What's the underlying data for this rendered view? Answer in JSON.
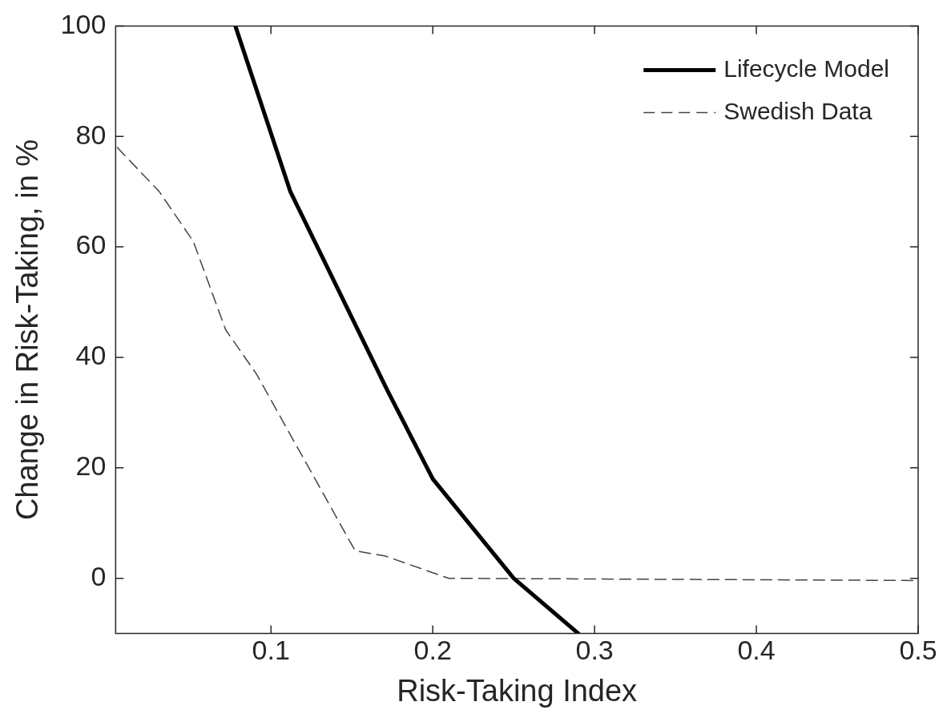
{
  "chart_data": {
    "type": "line",
    "xlabel": "Risk-Taking Index",
    "ylabel": "Change in Risk-Taking, in %",
    "xlim": [
      0.004,
      0.5
    ],
    "ylim": [
      -10,
      100
    ],
    "xticks": [
      0.1,
      0.2,
      0.3,
      0.4,
      0.5
    ],
    "yticks": [
      0,
      20,
      40,
      60,
      80,
      100
    ],
    "grid": false,
    "legend": "top right",
    "marker": "none",
    "series": [
      {
        "name": "Lifecycle Model",
        "color": "#000000",
        "line_style": "solid",
        "x": [
          0.078,
          0.112,
          0.172,
          0.2,
          0.25,
          0.29
        ],
        "values": [
          100,
          70,
          34,
          18,
          0,
          -10
        ]
      },
      {
        "name": "Swedish Data",
        "color": "#444444",
        "line_style": "dashed",
        "x": [
          0.005,
          0.031,
          0.052,
          0.072,
          0.091,
          0.152,
          0.171,
          0.2,
          0.21,
          0.5
        ],
        "values": [
          78,
          70,
          61,
          45,
          37,
          5,
          4,
          1,
          0,
          -0.4
        ]
      }
    ]
  }
}
